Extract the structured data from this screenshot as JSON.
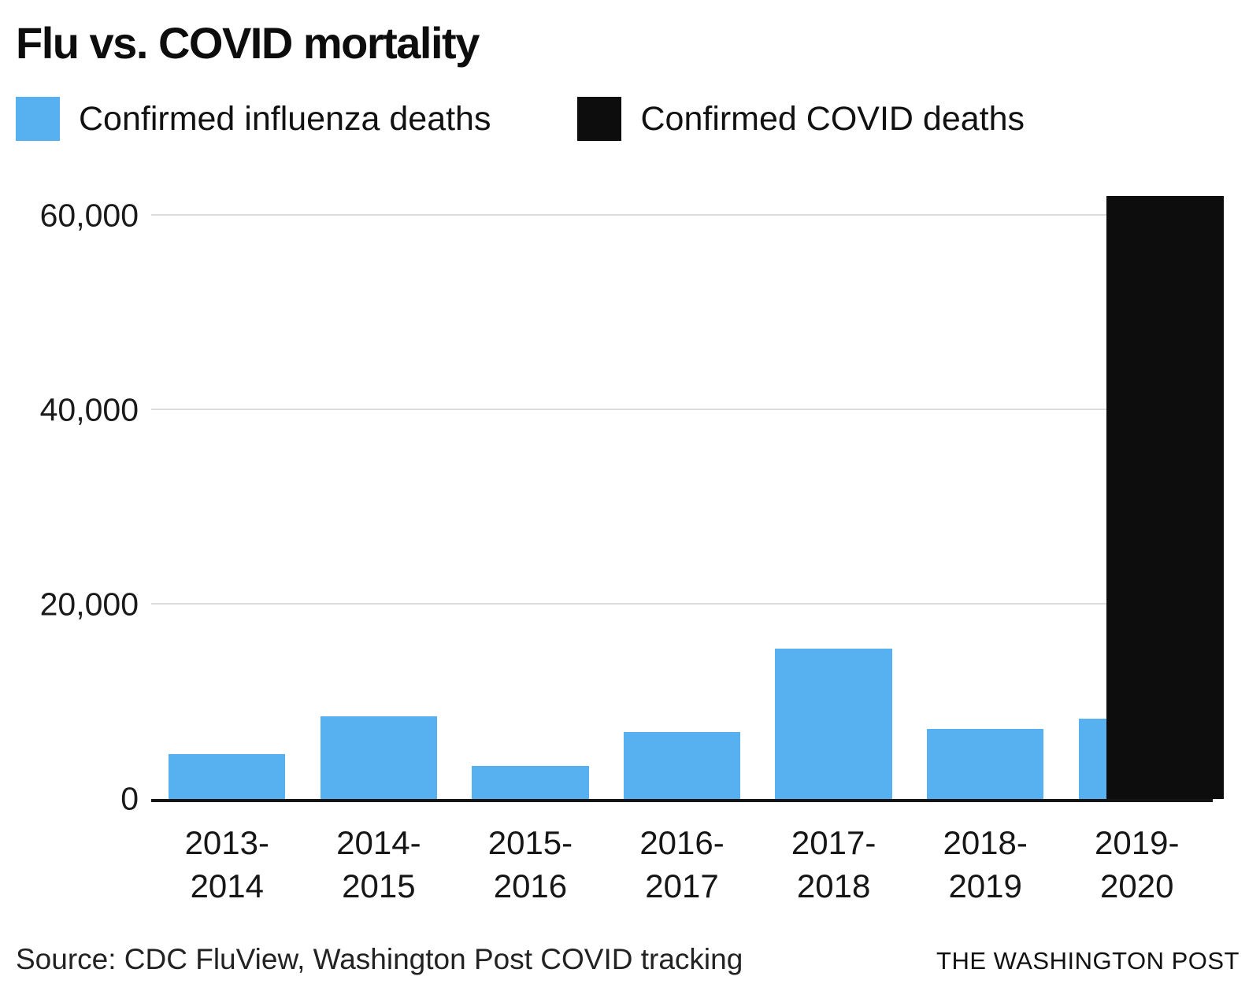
{
  "title": "Flu vs. COVID mortality",
  "legend": [
    {
      "label": "Confirmed influenza deaths",
      "color": "#57b1f1"
    },
    {
      "label": "Confirmed COVID deaths",
      "color": "#0d0d0d"
    }
  ],
  "footer": {
    "source": "Source: CDC FluView, Washington Post COVID tracking",
    "credit": "THE WASHINGTON POST"
  },
  "chart_data": {
    "type": "bar",
    "title": "Flu vs. COVID mortality",
    "categories": [
      "2013-\n2014",
      "2014-\n2015",
      "2015-\n2016",
      "2016-\n2017",
      "2017-\n2018",
      "2018-\n2019",
      "2019-\n2020"
    ],
    "series": [
      {
        "name": "Confirmed influenza deaths",
        "slug": "influenza",
        "color": "#57b1f1",
        "values": [
          4600,
          8500,
          3400,
          6900,
          15500,
          7200,
          8300
        ]
      },
      {
        "name": "Confirmed COVID deaths",
        "slug": "covid",
        "color": "#0d0d0d",
        "values": [
          null,
          null,
          null,
          null,
          null,
          null,
          62000
        ]
      }
    ],
    "yticks": [
      {
        "value": 0,
        "label": "0"
      },
      {
        "value": 20000,
        "label": "20,000"
      },
      {
        "value": 40000,
        "label": "40,000"
      },
      {
        "value": 60000,
        "label": "60,000"
      }
    ],
    "ymax": 63000,
    "xlabel": "",
    "ylabel": "",
    "grid": "horizontal",
    "legend_position": "top",
    "notes": "COVID bar for 2019-2020 overlaps and is offset right of the influenza bar"
  }
}
